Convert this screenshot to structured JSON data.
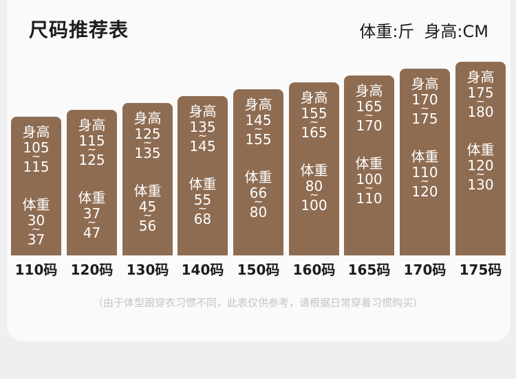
{
  "header": {
    "title": "尺码推荐表",
    "weight_unit": "体重:斤",
    "height_unit": "身高:CM"
  },
  "labels": {
    "height": "身高",
    "weight": "体重",
    "tilde": "~"
  },
  "bar_color": "#8e6c52",
  "sizes": [
    {
      "size": "110码",
      "height_min": "105",
      "height_max": "115",
      "weight_min": "30",
      "weight_max": "37"
    },
    {
      "size": "120码",
      "height_min": "115",
      "height_max": "125",
      "weight_min": "37",
      "weight_max": "47"
    },
    {
      "size": "130码",
      "height_min": "125",
      "height_max": "135",
      "weight_min": "45",
      "weight_max": "56"
    },
    {
      "size": "140码",
      "height_min": "135",
      "height_max": "145",
      "weight_min": "55",
      "weight_max": "68"
    },
    {
      "size": "150码",
      "height_min": "145",
      "height_max": "155",
      "weight_min": "66",
      "weight_max": "80"
    },
    {
      "size": "160码",
      "height_min": "155",
      "height_max": "165",
      "weight_min": "80",
      "weight_max": "100"
    },
    {
      "size": "165码",
      "height_min": "165",
      "height_max": "170",
      "weight_min": "100",
      "weight_max": "110"
    },
    {
      "size": "170码",
      "height_min": "170",
      "height_max": "175",
      "weight_min": "110",
      "weight_max": "120"
    },
    {
      "size": "175码",
      "height_min": "175",
      "height_max": "180",
      "weight_min": "120",
      "weight_max": "130"
    }
  ],
  "note": "（由于体型跟穿衣习惯不同，此表仅供参考，请根据日常穿着习惯购买）"
}
